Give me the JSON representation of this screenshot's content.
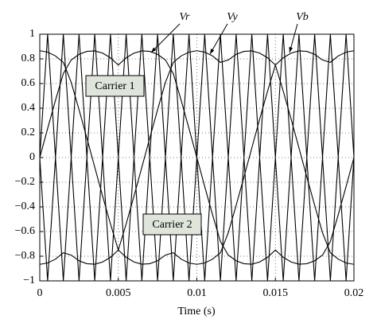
{
  "chart_data": {
    "type": "line",
    "x_label": "Time (s)",
    "x": [
      0,
      0.0005,
      0.001,
      0.0015,
      0.002,
      0.0025,
      0.003,
      0.0035,
      0.004,
      0.0045,
      0.005,
      0.0055,
      0.006,
      0.0065,
      0.007,
      0.0075,
      0.008,
      0.0085,
      0.009,
      0.0095,
      0.01,
      0.0105,
      0.011,
      0.0115,
      0.012,
      0.0125,
      0.013,
      0.0135,
      0.014,
      0.0145,
      0.015,
      0.0155,
      0.016,
      0.0165,
      0.017,
      0.0175,
      0.018,
      0.0185,
      0.019,
      0.0195,
      0.02
    ],
    "series": [
      {
        "name": "Vr",
        "color": "#000000",
        "values": [
          0,
          0.235,
          0.464,
          0.681,
          0.791,
          0.837,
          0.861,
          0.865,
          0.847,
          0.809,
          0.75,
          0.809,
          0.847,
          0.865,
          0.861,
          0.837,
          0.791,
          0.681,
          0.464,
          0.235,
          0,
          -0.235,
          -0.464,
          -0.681,
          -0.791,
          -0.837,
          -0.861,
          -0.865,
          -0.847,
          -0.809,
          -0.75,
          -0.809,
          -0.847,
          -0.865,
          -0.861,
          -0.837,
          -0.791,
          -0.681,
          -0.464,
          -0.235,
          0
        ]
      },
      {
        "name": "Vy",
        "color": "#000000",
        "values": [
          -0.866,
          -0.855,
          -0.824,
          -0.772,
          -0.791,
          -0.837,
          -0.861,
          -0.865,
          -0.847,
          -0.809,
          -0.75,
          -0.538,
          -0.312,
          -0.078,
          0.157,
          0.388,
          0.61,
          0.772,
          0.824,
          0.855,
          0.866,
          0.855,
          0.824,
          0.772,
          0.791,
          0.837,
          0.861,
          0.865,
          0.847,
          0.809,
          0.75,
          0.538,
          0.312,
          0.078,
          -0.157,
          -0.388,
          -0.61,
          -0.772,
          -0.824,
          -0.855,
          -0.866
        ]
      },
      {
        "name": "Vb",
        "color": "#000000",
        "values": [
          0.866,
          0.855,
          0.824,
          0.772,
          0.61,
          0.388,
          0.157,
          -0.078,
          -0.312,
          -0.538,
          -0.75,
          -0.809,
          -0.847,
          -0.865,
          -0.861,
          -0.837,
          -0.791,
          -0.772,
          -0.824,
          -0.855,
          -0.866,
          -0.855,
          -0.824,
          -0.772,
          -0.61,
          -0.388,
          -0.157,
          0.078,
          0.312,
          0.538,
          0.75,
          0.809,
          0.847,
          0.865,
          0.861,
          0.837,
          0.791,
          0.772,
          0.824,
          0.855,
          0.866
        ]
      },
      {
        "name": "Carrier 1",
        "color": "#000000",
        "values": [
          0,
          1,
          0,
          1,
          0,
          1,
          0,
          1,
          0,
          1,
          0,
          1,
          0,
          1,
          0,
          1,
          0,
          1,
          0,
          1,
          0,
          1,
          0,
          1,
          0,
          1,
          0,
          1,
          0,
          1,
          0,
          1,
          0,
          1,
          0,
          1,
          0,
          1,
          0,
          1,
          0
        ]
      },
      {
        "name": "Carrier 2",
        "color": "#000000",
        "values": [
          0,
          -1,
          0,
          -1,
          0,
          -1,
          0,
          -1,
          0,
          -1,
          0,
          -1,
          0,
          -1,
          0,
          -1,
          0,
          -1,
          0,
          -1,
          0,
          -1,
          0,
          -1,
          0,
          -1,
          0,
          -1,
          0,
          -1,
          0,
          -1,
          0,
          -1,
          0,
          -1,
          0,
          -1,
          0,
          -1,
          0
        ]
      }
    ],
    "xlim": [
      0,
      0.02
    ],
    "xticks": [
      0,
      0.005,
      0.01,
      0.015,
      0.02
    ],
    "ylim": [
      -1,
      1
    ],
    "yticks": [
      {
        "value": -1,
        "label": "−1"
      },
      {
        "value": -0.8,
        "label": "−0.8"
      },
      {
        "value": -0.6,
        "label": "−0.6"
      },
      {
        "value": -0.4,
        "label": "−0.4"
      },
      {
        "value": -0.2,
        "label": "−0.2"
      },
      0,
      0.2,
      0.4,
      0.6,
      0.8,
      1
    ],
    "grid": true
  }
}
